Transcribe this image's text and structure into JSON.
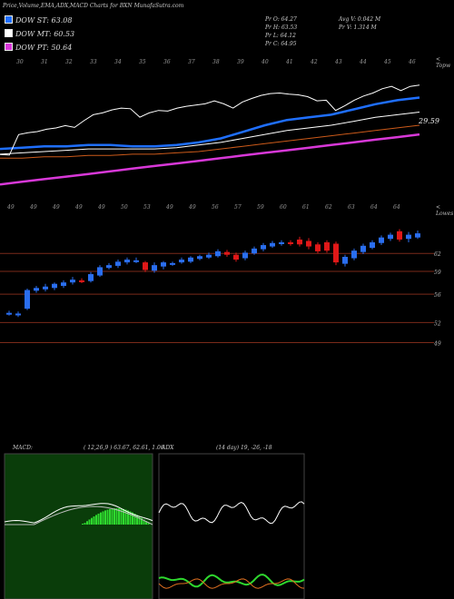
{
  "header": {
    "title": "Price,Volume,EMA,ADX,MACD Charts for BXN",
    "site": "MunafaSutra.com"
  },
  "legend": [
    {
      "label": "DOW ST: 63.08",
      "color": "#1f6fff"
    },
    {
      "label": "DOW MT: 60.53",
      "color": "#ffffff"
    },
    {
      "label": "DOW PT: 50.64",
      "color": "#d838d8"
    }
  ],
  "stats": {
    "pr_open": "Pr   O: 64.27",
    "pr_high": "Pr   H: 63.53",
    "pr_low": "Pr   L: 64.12",
    "pr_close": "Pr   C: 64.95",
    "avg_vol": "Avg V: 0.042  M",
    "pr_vol": "Pr   V: 1.314  M"
  },
  "panels": {
    "top_label": "< Topw",
    "mid_label": "< Lowes",
    "ema_value": "29.59",
    "macd_label": "MACD:",
    "macd_params": "( 12,26,9 ) 63.67,  62.61,  1.06",
    "adx_label": "ADX",
    "adx_params": "(14  day) 19,  -26,  -18"
  },
  "colors": {
    "up_candle": "#2a6ef0",
    "down_candle": "#e01818",
    "ema_fast": "#1f6fff",
    "ema_slow": "#ffffff",
    "ema_long": "#cc5a1a",
    "ema_pt": "#d838d8",
    "macd_hist": "#2ed82e",
    "support_line": "#7a2a1a"
  },
  "chart_data": {
    "type": "line",
    "title": "Price,Volume,EMA,ADX,MACD Charts for BXN",
    "price_axis_ticks": [
      "62",
      "59",
      "56",
      "52",
      "49"
    ],
    "price_ylim": [
      47,
      68
    ],
    "support_levels": [
      62.2,
      59.6,
      56.3,
      52.2,
      49.3
    ],
    "date_labels_top": [
      "30",
      "31",
      "32",
      "33",
      "34",
      "35",
      "36",
      "37",
      "38",
      "39",
      "40",
      "41",
      "42",
      "43",
      "44",
      "45",
      "46"
    ],
    "date_labels_mid": [
      "49",
      "49",
      "49",
      "49",
      "49",
      "50",
      "53",
      "49",
      "49",
      "56",
      "57",
      "59",
      "60",
      "61",
      "62",
      "63",
      "64",
      "64"
    ],
    "candles": [
      {
        "o": 53.4,
        "c": 53.6,
        "h": 53.9,
        "l": 53.2,
        "up": true
      },
      {
        "o": 53.3,
        "c": 53.5,
        "h": 53.8,
        "l": 53.0,
        "up": true
      },
      {
        "o": 54.2,
        "c": 56.9,
        "h": 57.1,
        "l": 54.0,
        "up": true
      },
      {
        "o": 56.8,
        "c": 57.2,
        "h": 57.5,
        "l": 56.5,
        "up": true
      },
      {
        "o": 57.0,
        "c": 57.4,
        "h": 57.8,
        "l": 56.7,
        "up": true
      },
      {
        "o": 57.2,
        "c": 57.8,
        "h": 58.0,
        "l": 56.9,
        "up": true
      },
      {
        "o": 57.5,
        "c": 58.0,
        "h": 58.3,
        "l": 57.2,
        "up": true
      },
      {
        "o": 58.0,
        "c": 58.4,
        "h": 58.8,
        "l": 57.7,
        "up": true
      },
      {
        "o": 58.3,
        "c": 58.1,
        "h": 58.6,
        "l": 57.9,
        "up": false
      },
      {
        "o": 58.2,
        "c": 59.2,
        "h": 59.5,
        "l": 58.0,
        "up": true
      },
      {
        "o": 59.0,
        "c": 60.2,
        "h": 60.5,
        "l": 58.8,
        "up": true
      },
      {
        "o": 60.1,
        "c": 60.5,
        "h": 60.8,
        "l": 59.9,
        "up": true
      },
      {
        "o": 60.4,
        "c": 61.0,
        "h": 61.3,
        "l": 60.1,
        "up": true
      },
      {
        "o": 60.9,
        "c": 61.3,
        "h": 61.6,
        "l": 60.6,
        "up": true
      },
      {
        "o": 61.1,
        "c": 61.2,
        "h": 61.6,
        "l": 60.8,
        "up": true
      },
      {
        "o": 60.9,
        "c": 59.8,
        "h": 61.1,
        "l": 59.5,
        "up": false
      },
      {
        "o": 59.7,
        "c": 60.5,
        "h": 60.9,
        "l": 59.4,
        "up": true
      },
      {
        "o": 60.3,
        "c": 60.9,
        "h": 61.1,
        "l": 59.9,
        "up": true
      },
      {
        "o": 60.7,
        "c": 60.8,
        "h": 61.0,
        "l": 60.4,
        "up": true
      },
      {
        "o": 60.9,
        "c": 61.3,
        "h": 61.6,
        "l": 60.7,
        "up": true
      },
      {
        "o": 61.0,
        "c": 61.6,
        "h": 61.8,
        "l": 60.8,
        "up": true
      },
      {
        "o": 61.4,
        "c": 61.8,
        "h": 62.0,
        "l": 61.2,
        "up": true
      },
      {
        "o": 61.6,
        "c": 62.0,
        "h": 62.3,
        "l": 61.4,
        "up": true
      },
      {
        "o": 61.8,
        "c": 62.5,
        "h": 62.8,
        "l": 61.6,
        "up": true
      },
      {
        "o": 62.4,
        "c": 62.0,
        "h": 62.7,
        "l": 61.7,
        "up": false
      },
      {
        "o": 62.0,
        "c": 61.3,
        "h": 62.3,
        "l": 61.0,
        "up": false
      },
      {
        "o": 61.5,
        "c": 62.3,
        "h": 62.6,
        "l": 61.2,
        "up": true
      },
      {
        "o": 62.2,
        "c": 62.9,
        "h": 63.2,
        "l": 62.0,
        "up": true
      },
      {
        "o": 62.8,
        "c": 63.4,
        "h": 63.7,
        "l": 62.5,
        "up": true
      },
      {
        "o": 63.2,
        "c": 63.7,
        "h": 64.0,
        "l": 63.0,
        "up": true
      },
      {
        "o": 63.6,
        "c": 63.8,
        "h": 64.1,
        "l": 63.3,
        "up": true
      },
      {
        "o": 63.8,
        "c": 63.6,
        "h": 64.1,
        "l": 63.3,
        "up": false
      },
      {
        "o": 64.2,
        "c": 63.5,
        "h": 64.6,
        "l": 63.2,
        "up": false
      },
      {
        "o": 64.0,
        "c": 63.2,
        "h": 64.4,
        "l": 62.8,
        "up": false
      },
      {
        "o": 63.5,
        "c": 62.5,
        "h": 63.8,
        "l": 62.2,
        "up": false
      },
      {
        "o": 63.8,
        "c": 62.6,
        "h": 64.1,
        "l": 62.3,
        "up": false
      },
      {
        "o": 63.6,
        "c": 60.9,
        "h": 63.9,
        "l": 60.5,
        "up": false
      },
      {
        "o": 60.7,
        "c": 61.7,
        "h": 62.0,
        "l": 60.3,
        "up": true
      },
      {
        "o": 61.5,
        "c": 62.6,
        "h": 62.9,
        "l": 61.2,
        "up": true
      },
      {
        "o": 62.4,
        "c": 63.3,
        "h": 63.6,
        "l": 62.1,
        "up": true
      },
      {
        "o": 63.0,
        "c": 63.8,
        "h": 64.1,
        "l": 62.8,
        "up": true
      },
      {
        "o": 63.7,
        "c": 64.5,
        "h": 64.8,
        "l": 63.4,
        "up": true
      },
      {
        "o": 64.3,
        "c": 64.9,
        "h": 65.2,
        "l": 64.0,
        "up": true
      },
      {
        "o": 65.4,
        "c": 64.2,
        "h": 65.7,
        "l": 63.9,
        "up": false
      },
      {
        "o": 64.3,
        "c": 64.9,
        "h": 65.3,
        "l": 63.8,
        "up": true
      },
      {
        "o": 64.5,
        "c": 65.1,
        "h": 65.5,
        "l": 64.3,
        "up": true
      }
    ],
    "ema_series": [
      {
        "values": [
          0.42,
          0.43,
          0.44,
          0.44,
          0.45,
          0.45,
          0.44,
          0.44,
          0.45,
          0.47,
          0.5,
          0.55,
          0.6,
          0.64,
          0.66,
          0.68,
          0.72,
          0.76,
          0.79,
          0.81
        ]
      },
      {
        "values": [
          0.38,
          0.39,
          0.4,
          0.41,
          0.42,
          0.42,
          0.42,
          0.42,
          0.43,
          0.45,
          0.47,
          0.5,
          0.53,
          0.56,
          0.58,
          0.6,
          0.63,
          0.66,
          0.68,
          0.7
        ]
      },
      {
        "values": [
          0.35,
          0.35,
          0.36,
          0.36,
          0.37,
          0.37,
          0.38,
          0.38,
          0.39,
          0.4,
          0.42,
          0.44,
          0.46,
          0.48,
          0.5,
          0.52,
          0.54,
          0.56,
          0.58,
          0.6
        ]
      },
      {
        "values": [
          0.15,
          0.17,
          0.19,
          0.21,
          0.23,
          0.25,
          0.27,
          0.29,
          0.31,
          0.33,
          0.35,
          0.37,
          0.39,
          0.41,
          0.43,
          0.45,
          0.47,
          0.49,
          0.51,
          0.53
        ]
      }
    ],
    "macd": {
      "macd": 63.67,
      "signal": 62.61,
      "histogram": 1.06
    },
    "adx": {
      "adx": 19,
      "plus_di": -26,
      "minus_di": -18
    }
  }
}
